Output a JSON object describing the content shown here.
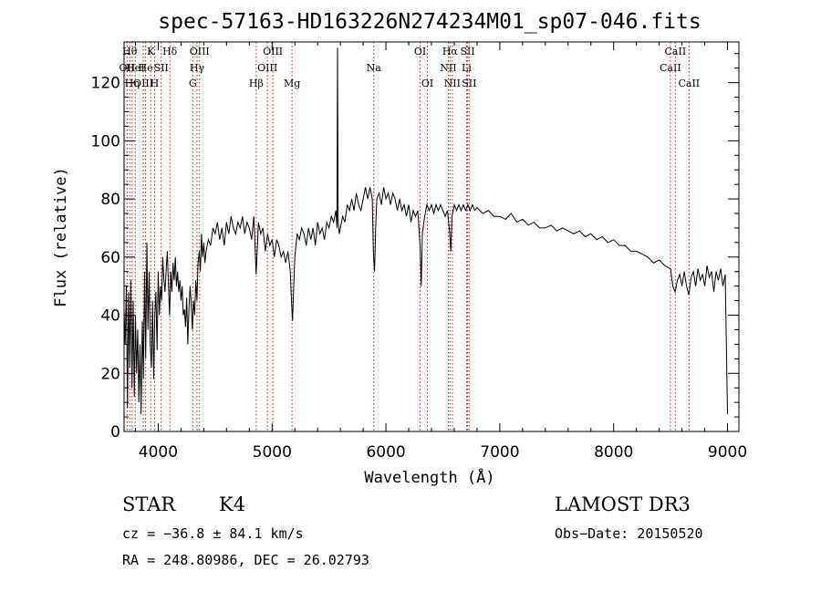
{
  "chart_data": {
    "type": "line",
    "title": "spec-57163-HD163226N274234M01_sp07-046.fits",
    "xlabel": "Wavelength (Å)",
    "ylabel": "Flux (relative)",
    "xlim": [
      3700,
      9100
    ],
    "ylim": [
      0,
      134
    ],
    "x_ticks": [
      4000,
      5000,
      6000,
      7000,
      8000,
      9000
    ],
    "y_ticks": [
      0,
      20,
      40,
      60,
      80,
      100,
      120
    ],
    "grid": false,
    "line_color": "#000000",
    "marker_color": "#b22222",
    "series": [
      {
        "values": [
          [
            3700,
            42
          ],
          [
            3710,
            30
          ],
          [
            3720,
            50
          ],
          [
            3730,
            8
          ],
          [
            3740,
            48
          ],
          [
            3750,
            22
          ],
          [
            3760,
            52
          ],
          [
            3770,
            15
          ],
          [
            3780,
            45
          ],
          [
            3790,
            12
          ],
          [
            3800,
            40
          ],
          [
            3810,
            20
          ],
          [
            3820,
            35
          ],
          [
            3830,
            10
          ],
          [
            3840,
            30
          ],
          [
            3850,
            6
          ],
          [
            3860,
            38
          ],
          [
            3870,
            18
          ],
          [
            3880,
            55
          ],
          [
            3890,
            25
          ],
          [
            3900,
            65
          ],
          [
            3910,
            35
          ],
          [
            3920,
            55
          ],
          [
            3930,
            30
          ],
          [
            3940,
            22
          ],
          [
            3950,
            45
          ],
          [
            3960,
            18
          ],
          [
            3970,
            40
          ],
          [
            3980,
            48
          ],
          [
            3990,
            28
          ],
          [
            4000,
            55
          ],
          [
            4010,
            40
          ],
          [
            4020,
            50
          ],
          [
            4030,
            45
          ],
          [
            4040,
            60
          ],
          [
            4050,
            52
          ],
          [
            4060,
            48
          ],
          [
            4070,
            56
          ],
          [
            4080,
            62
          ],
          [
            4090,
            50
          ],
          [
            4100,
            40
          ],
          [
            4110,
            55
          ],
          [
            4120,
            48
          ],
          [
            4130,
            58
          ],
          [
            4140,
            52
          ],
          [
            4150,
            60
          ],
          [
            4160,
            50
          ],
          [
            4170,
            55
          ],
          [
            4180,
            48
          ],
          [
            4190,
            52
          ],
          [
            4200,
            45
          ],
          [
            4210,
            50
          ],
          [
            4220,
            40
          ],
          [
            4230,
            42
          ],
          [
            4240,
            36
          ],
          [
            4250,
            46
          ],
          [
            4260,
            30
          ],
          [
            4270,
            42
          ],
          [
            4280,
            50
          ],
          [
            4290,
            44
          ],
          [
            4300,
            35
          ],
          [
            4310,
            45
          ],
          [
            4320,
            40
          ],
          [
            4330,
            52
          ],
          [
            4340,
            45
          ],
          [
            4350,
            58
          ],
          [
            4360,
            62
          ],
          [
            4370,
            55
          ],
          [
            4380,
            68
          ],
          [
            4390,
            60
          ],
          [
            4400,
            65
          ],
          [
            4410,
            58
          ],
          [
            4420,
            62
          ],
          [
            4440,
            66
          ],
          [
            4460,
            64
          ],
          [
            4480,
            70
          ],
          [
            4500,
            68
          ],
          [
            4520,
            72
          ],
          [
            4540,
            66
          ],
          [
            4560,
            70
          ],
          [
            4580,
            64
          ],
          [
            4600,
            72
          ],
          [
            4620,
            68
          ],
          [
            4640,
            74
          ],
          [
            4660,
            70
          ],
          [
            4680,
            68
          ],
          [
            4700,
            72
          ],
          [
            4720,
            70
          ],
          [
            4740,
            74
          ],
          [
            4760,
            68
          ],
          [
            4780,
            72
          ],
          [
            4800,
            70
          ],
          [
            4820,
            66
          ],
          [
            4840,
            74
          ],
          [
            4860,
            54
          ],
          [
            4880,
            72
          ],
          [
            4900,
            68
          ],
          [
            4920,
            70
          ],
          [
            4940,
            62
          ],
          [
            4960,
            68
          ],
          [
            4980,
            64
          ],
          [
            5000,
            66
          ],
          [
            5020,
            60
          ],
          [
            5040,
            66
          ],
          [
            5060,
            64
          ],
          [
            5080,
            60
          ],
          [
            5100,
            62
          ],
          [
            5120,
            58
          ],
          [
            5140,
            62
          ],
          [
            5160,
            55
          ],
          [
            5170,
            45
          ],
          [
            5180,
            38
          ],
          [
            5190,
            50
          ],
          [
            5200,
            60
          ],
          [
            5220,
            68
          ],
          [
            5240,
            66
          ],
          [
            5260,
            70
          ],
          [
            5280,
            68
          ],
          [
            5300,
            64
          ],
          [
            5320,
            70
          ],
          [
            5340,
            66
          ],
          [
            5360,
            70
          ],
          [
            5380,
            64
          ],
          [
            5400,
            72
          ],
          [
            5420,
            68
          ],
          [
            5440,
            70
          ],
          [
            5460,
            66
          ],
          [
            5480,
            72
          ],
          [
            5500,
            70
          ],
          [
            5520,
            74
          ],
          [
            5540,
            72
          ],
          [
            5560,
            76
          ],
          [
            5570,
            70
          ],
          [
            5575,
            132
          ],
          [
            5580,
            72
          ],
          [
            5590,
            68
          ],
          [
            5600,
            70
          ],
          [
            5620,
            74
          ],
          [
            5640,
            72
          ],
          [
            5660,
            78
          ],
          [
            5680,
            76
          ],
          [
            5700,
            80
          ],
          [
            5720,
            76
          ],
          [
            5740,
            82
          ],
          [
            5760,
            78
          ],
          [
            5780,
            76
          ],
          [
            5800,
            80
          ],
          [
            5820,
            84
          ],
          [
            5840,
            80
          ],
          [
            5860,
            84
          ],
          [
            5880,
            80
          ],
          [
            5890,
            62
          ],
          [
            5900,
            55
          ],
          [
            5910,
            70
          ],
          [
            5920,
            80
          ],
          [
            5940,
            82
          ],
          [
            5960,
            78
          ],
          [
            5980,
            84
          ],
          [
            6000,
            80
          ],
          [
            6020,
            82
          ],
          [
            6040,
            78
          ],
          [
            6060,
            82
          ],
          [
            6080,
            80
          ],
          [
            6100,
            76
          ],
          [
            6120,
            80
          ],
          [
            6140,
            76
          ],
          [
            6160,
            78
          ],
          [
            6180,
            74
          ],
          [
            6200,
            78
          ],
          [
            6220,
            72
          ],
          [
            6240,
            76
          ],
          [
            6260,
            74
          ],
          [
            6280,
            76
          ],
          [
            6300,
            64
          ],
          [
            6310,
            50
          ],
          [
            6320,
            68
          ],
          [
            6340,
            74
          ],
          [
            6360,
            78
          ],
          [
            6380,
            76
          ],
          [
            6400,
            78
          ],
          [
            6420,
            75
          ],
          [
            6440,
            78
          ],
          [
            6460,
            76
          ],
          [
            6480,
            78
          ],
          [
            6500,
            76
          ],
          [
            6520,
            74
          ],
          [
            6540,
            76
          ],
          [
            6560,
            68
          ],
          [
            6570,
            62
          ],
          [
            6580,
            74
          ],
          [
            6600,
            78
          ],
          [
            6620,
            76
          ],
          [
            6640,
            78
          ],
          [
            6660,
            76
          ],
          [
            6680,
            78
          ],
          [
            6700,
            76
          ],
          [
            6720,
            78
          ],
          [
            6740,
            76
          ],
          [
            6760,
            78
          ],
          [
            6780,
            76
          ],
          [
            6800,
            77
          ],
          [
            6850,
            75
          ],
          [
            6900,
            76
          ],
          [
            6950,
            74
          ],
          [
            7000,
            74
          ],
          [
            7050,
            73
          ],
          [
            7100,
            75
          ],
          [
            7150,
            72
          ],
          [
            7200,
            73
          ],
          [
            7250,
            71
          ],
          [
            7300,
            72
          ],
          [
            7350,
            70
          ],
          [
            7400,
            70
          ],
          [
            7450,
            71
          ],
          [
            7500,
            69
          ],
          [
            7550,
            70
          ],
          [
            7600,
            69
          ],
          [
            7650,
            68
          ],
          [
            7700,
            69
          ],
          [
            7750,
            67
          ],
          [
            7800,
            68
          ],
          [
            7850,
            66
          ],
          [
            7900,
            67
          ],
          [
            7950,
            65
          ],
          [
            8000,
            66
          ],
          [
            8050,
            64
          ],
          [
            8100,
            64
          ],
          [
            8150,
            62
          ],
          [
            8200,
            62
          ],
          [
            8250,
            61
          ],
          [
            8300,
            60
          ],
          [
            8350,
            58
          ],
          [
            8400,
            59
          ],
          [
            8450,
            57
          ],
          [
            8500,
            56
          ],
          [
            8520,
            50
          ],
          [
            8540,
            48
          ],
          [
            8560,
            52
          ],
          [
            8580,
            54
          ],
          [
            8600,
            50
          ],
          [
            8620,
            55
          ],
          [
            8640,
            50
          ],
          [
            8660,
            47
          ],
          [
            8680,
            53
          ],
          [
            8700,
            55
          ],
          [
            8720,
            50
          ],
          [
            8740,
            56
          ],
          [
            8760,
            52
          ],
          [
            8780,
            54
          ],
          [
            8800,
            50
          ],
          [
            8820,
            57
          ],
          [
            8840,
            53
          ],
          [
            8860,
            55
          ],
          [
            8880,
            48
          ],
          [
            8900,
            55
          ],
          [
            8920,
            52
          ],
          [
            8940,
            56
          ],
          [
            8960,
            50
          ],
          [
            8980,
            54
          ],
          [
            9000,
            6
          ]
        ]
      }
    ],
    "line_markers": [
      {
        "wl": 3727,
        "row": 1,
        "label": "OII"
      },
      {
        "wl": 3750,
        "row": 0,
        "label": "Hθ"
      },
      {
        "wl": 3771,
        "row": 2,
        "label": "Hη"
      },
      {
        "wl": 3798,
        "row": 1,
        "label": "HeI"
      },
      {
        "wl": 3869,
        "row": 2,
        "label": "OIII"
      },
      {
        "wl": 3889,
        "row": 1,
        "label": "He"
      },
      {
        "wl": 3934,
        "row": 0,
        "label": "K"
      },
      {
        "wl": 3968,
        "row": 2,
        "label": "H"
      },
      {
        "wl": 4026,
        "row": 1,
        "label": "SII"
      },
      {
        "wl": 4102,
        "row": 0,
        "label": "Hδ"
      },
      {
        "wl": 4304,
        "row": 2,
        "label": "G"
      },
      {
        "wl": 4341,
        "row": 1,
        "label": "Hγ"
      },
      {
        "wl": 4363,
        "row": 0,
        "label": "OIII"
      },
      {
        "wl": 4861,
        "row": 2,
        "label": "Hβ"
      },
      {
        "wl": 4959,
        "row": 1,
        "label": "OIII"
      },
      {
        "wl": 5007,
        "row": 0,
        "label": "OIII"
      },
      {
        "wl": 5175,
        "row": 2,
        "label": "Mg"
      },
      {
        "wl": 5893,
        "row": 1,
        "label": "Na"
      },
      {
        "wl": 6300,
        "row": 0,
        "label": "OI"
      },
      {
        "wl": 6364,
        "row": 2,
        "label": "OI"
      },
      {
        "wl": 6548,
        "row": 1,
        "label": "NII"
      },
      {
        "wl": 6563,
        "row": 0,
        "label": "Hα"
      },
      {
        "wl": 6583,
        "row": 2,
        "label": "NII"
      },
      {
        "wl": 6708,
        "row": 1,
        "label": "Li"
      },
      {
        "wl": 6717,
        "row": 0,
        "label": "SII"
      },
      {
        "wl": 6731,
        "row": 2,
        "label": "SII"
      },
      {
        "wl": 8498,
        "row": 1,
        "label": "CaII"
      },
      {
        "wl": 8542,
        "row": 0,
        "label": "CaII"
      },
      {
        "wl": 8662,
        "row": 2,
        "label": "CaII"
      }
    ]
  },
  "info": {
    "class": "STAR",
    "subclass": "K4",
    "survey": "LAMOST DR3",
    "cz": "cz = −36.8 ± 84.1 km/s",
    "obs_date": "Obs−Date: 20150520",
    "coords": "RA = 248.80986, DEC =  26.02793"
  }
}
